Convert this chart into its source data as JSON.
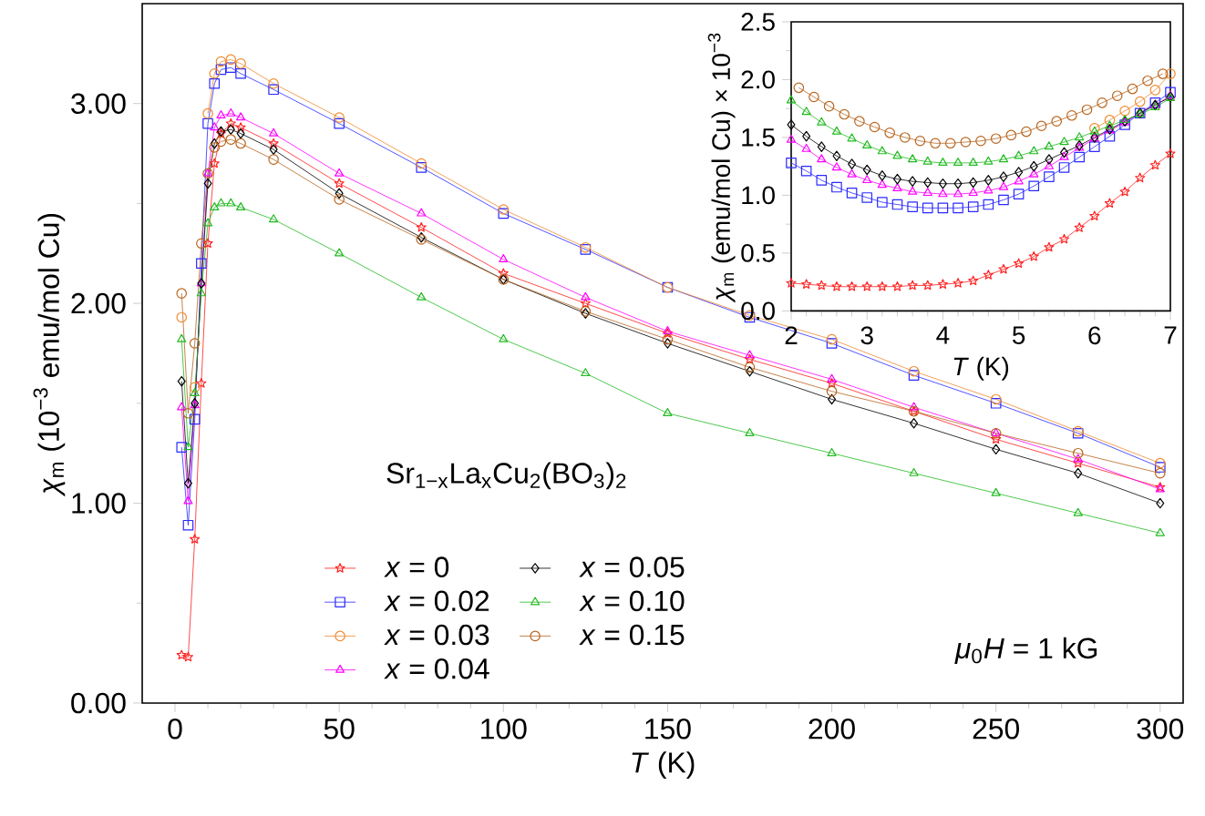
{
  "chart_data": [
    {
      "type": "line",
      "xlabel": "*T* (K)",
      "ylabel": "*χ*$_{m}$ (10$^{−3}$ emu/mol Cu)",
      "xlim": [
        -10,
        307
      ],
      "ylim": [
        0,
        3.5
      ],
      "xticks": [
        0,
        50,
        100,
        150,
        200,
        250,
        300
      ],
      "yticks": [
        {
          "value": 0,
          "label": "0.00"
        },
        {
          "value": 1,
          "label": "1.00"
        },
        {
          "value": 2,
          "label": "2.00"
        },
        {
          "value": 3,
          "label": "3.00"
        }
      ],
      "legend": "bottom",
      "legend_title": "Sr$_{1−x}$La$_{x}$Cu$_{2}$(BO$_{3}$)$_{2}$",
      "line_style": "solid",
      "annotations": [
        "*μ*$_{0}$*H* = 1 kG"
      ],
      "x": [
        2,
        4,
        6,
        8,
        10,
        12,
        14,
        17,
        20,
        30,
        50,
        75,
        100,
        125,
        150,
        175,
        200,
        225,
        250,
        275,
        300
      ],
      "series": [
        {
          "name": "*x* = 0",
          "color": "#ff2020",
          "marker": "star",
          "values": [
            0.24,
            0.23,
            0.82,
            1.6,
            2.3,
            2.7,
            2.85,
            2.9,
            2.88,
            2.8,
            2.6,
            2.38,
            2.15,
            2.0,
            1.85,
            1.72,
            1.6,
            1.46,
            1.32,
            1.2,
            1.08
          ]
        },
        {
          "name": "*x* = 0.02",
          "color": "#2a2aff",
          "marker": "square",
          "values": [
            1.28,
            0.89,
            1.42,
            2.2,
            2.9,
            3.1,
            3.17,
            3.18,
            3.15,
            3.07,
            2.9,
            2.68,
            2.45,
            2.27,
            2.08,
            1.93,
            1.8,
            1.64,
            1.5,
            1.35,
            1.18
          ]
        },
        {
          "name": "*x* = 0.03",
          "color": "#f08a30",
          "marker": "circle",
          "values": [
            1.93,
            null,
            1.58,
            null,
            2.95,
            3.15,
            3.21,
            3.22,
            3.2,
            3.1,
            2.93,
            2.7,
            2.47,
            2.28,
            2.08,
            1.94,
            1.82,
            1.66,
            1.52,
            1.36,
            1.2
          ]
        },
        {
          "name": "*x* = 0.04",
          "color": "#ff00ff",
          "marker": "triangle",
          "values": [
            1.48,
            1.01,
            1.49,
            2.1,
            2.65,
            2.88,
            2.94,
            2.95,
            2.93,
            2.85,
            2.65,
            2.45,
            2.22,
            2.03,
            1.86,
            1.74,
            1.62,
            1.48,
            1.35,
            1.22,
            1.07
          ]
        },
        {
          "name": "*x* = 0.05",
          "color": "#000000",
          "marker": "diamond",
          "values": [
            1.61,
            1.1,
            1.5,
            2.1,
            2.6,
            2.8,
            2.86,
            2.87,
            2.85,
            2.77,
            2.55,
            2.33,
            2.12,
            1.95,
            1.8,
            1.66,
            1.52,
            1.4,
            1.27,
            1.15,
            1.0
          ]
        },
        {
          "name": "*x* = 0.10",
          "color": "#22bb22",
          "marker": "triangle_down",
          "values": [
            1.82,
            1.28,
            1.55,
            2.05,
            2.4,
            2.48,
            2.5,
            2.5,
            2.48,
            2.42,
            2.25,
            2.03,
            1.82,
            1.65,
            1.45,
            1.35,
            1.25,
            1.15,
            1.05,
            0.95,
            0.85
          ]
        },
        {
          "name": "*x* = 0.15",
          "color": "#b8651e",
          "marker": "circle",
          "values": [
            2.05,
            1.45,
            1.8,
            2.3,
            2.65,
            2.78,
            2.81,
            2.82,
            2.8,
            2.72,
            2.52,
            2.32,
            2.12,
            1.96,
            1.82,
            1.68,
            1.56,
            1.46,
            1.35,
            1.25,
            1.15
          ]
        }
      ]
    },
    {
      "type": "line",
      "xlabel": "*T* (K)",
      "ylabel": "*χ*$_{m}$ (emu/mol Cu) × 10$^{−3}$",
      "xlim": [
        2,
        7
      ],
      "ylim": [
        0,
        2.5
      ],
      "xticks": [
        2,
        3,
        4,
        5,
        6,
        7
      ],
      "yticks": [
        {
          "value": 0,
          "label": "0.0"
        },
        {
          "value": 0.5,
          "label": "0.5"
        },
        {
          "value": 1,
          "label": "1.0"
        },
        {
          "value": 1.5,
          "label": "1.5"
        },
        {
          "value": 2,
          "label": "2.0"
        },
        {
          "value": 2.5,
          "label": "2.5"
        }
      ],
      "line_style": "solid",
      "x": [
        2,
        2.2,
        2.4,
        2.6,
        2.8,
        3,
        3.2,
        3.4,
        3.6,
        3.8,
        4,
        4.2,
        4.4,
        4.6,
        4.8,
        5,
        5.2,
        5.4,
        5.6,
        5.8,
        6,
        6.2,
        6.4,
        6.6,
        6.8,
        7
      ],
      "series": [
        {
          "color": "#ff2020",
          "marker": "star",
          "values": [
            0.24,
            0.23,
            0.22,
            0.21,
            0.21,
            0.21,
            0.21,
            0.21,
            0.22,
            0.22,
            0.23,
            0.24,
            0.26,
            0.31,
            0.36,
            0.41,
            0.47,
            0.55,
            0.62,
            0.72,
            0.82,
            0.93,
            1.03,
            1.15,
            1.26,
            1.36
          ]
        },
        {
          "color": "#2a2aff",
          "marker": "square",
          "values": [
            1.28,
            1.21,
            1.13,
            1.07,
            1.02,
            0.98,
            0.94,
            0.92,
            0.9,
            0.89,
            0.89,
            0.89,
            0.9,
            0.92,
            0.96,
            1.01,
            1.08,
            1.16,
            1.24,
            1.33,
            1.42,
            1.51,
            1.61,
            1.71,
            1.8,
            1.89
          ]
        },
        {
          "color": "#f08a30",
          "marker": "circle",
          "x": [
            6,
            6.2,
            6.4,
            6.6,
            6.8,
            7
          ],
          "values": [
            1.58,
            1.65,
            1.73,
            1.81,
            1.91,
            2.05
          ]
        },
        {
          "color": "#ff00ff",
          "marker": "triangle",
          "values": [
            1.48,
            1.4,
            1.31,
            1.24,
            1.18,
            1.13,
            1.09,
            1.06,
            1.03,
            1.02,
            1.01,
            1.01,
            1.02,
            1.04,
            1.07,
            1.12,
            1.18,
            1.25,
            1.33,
            1.41,
            1.49,
            1.56,
            1.63,
            1.71,
            1.78,
            1.86
          ]
        },
        {
          "color": "#000000",
          "marker": "diamond",
          "values": [
            1.61,
            1.51,
            1.42,
            1.34,
            1.27,
            1.22,
            1.17,
            1.14,
            1.12,
            1.11,
            1.1,
            1.1,
            1.11,
            1.13,
            1.16,
            1.2,
            1.25,
            1.31,
            1.37,
            1.43,
            1.5,
            1.57,
            1.64,
            1.71,
            1.78,
            1.85
          ]
        },
        {
          "color": "#22bb22",
          "marker": "triangle_down",
          "values": [
            1.82,
            1.72,
            1.63,
            1.55,
            1.49,
            1.43,
            1.38,
            1.34,
            1.31,
            1.29,
            1.28,
            1.28,
            1.28,
            1.29,
            1.31,
            1.34,
            1.38,
            1.42,
            1.46,
            1.5,
            1.55,
            1.6,
            1.65,
            1.7,
            1.76,
            1.84
          ]
        },
        {
          "color": "#b8651e",
          "marker": "circle",
          "x": [
            2.1,
            2.3,
            2.5,
            2.7,
            2.9,
            3.1,
            3.3,
            3.5,
            3.7,
            3.9,
            4.1,
            4.3,
            4.5,
            4.7,
            4.9,
            5.1,
            5.3,
            5.5,
            5.7,
            5.9,
            6.1,
            6.3,
            6.5,
            6.7,
            6.9
          ],
          "values": [
            1.93,
            1.85,
            1.77,
            1.7,
            1.64,
            1.59,
            1.54,
            1.5,
            1.47,
            1.45,
            1.45,
            1.46,
            1.47,
            1.49,
            1.52,
            1.55,
            1.6,
            1.64,
            1.69,
            1.74,
            1.8,
            1.86,
            1.92,
            1.99,
            2.05
          ]
        }
      ]
    }
  ]
}
